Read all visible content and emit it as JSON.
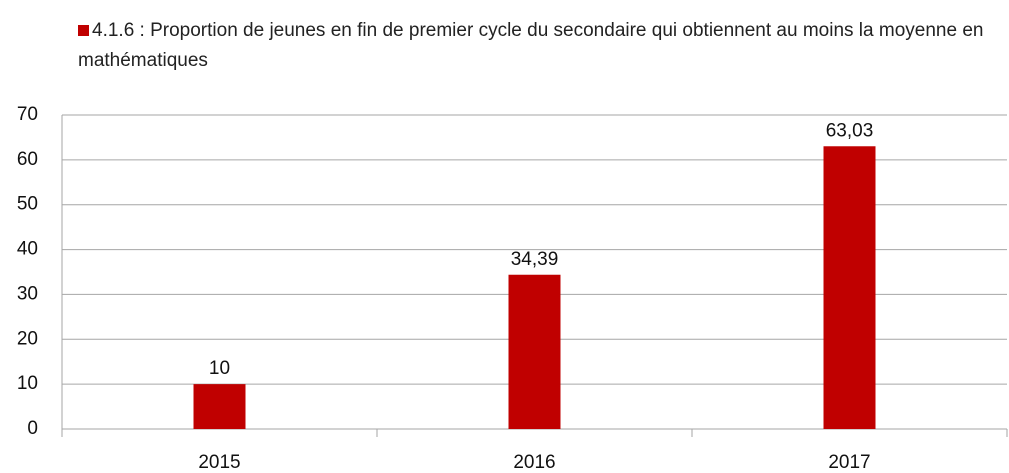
{
  "chart_data": {
    "type": "bar",
    "categories": [
      "2015",
      "2016",
      "2017"
    ],
    "series": [
      {
        "name": "4.1.6 : Proportion de jeunes en fin de premier cycle du secondaire qui obtiennent au moins la moyenne en mathématiques",
        "color": "#c00000",
        "values": [
          10,
          34.39,
          63.03
        ],
        "value_labels": [
          "10",
          "34,39",
          "63,03"
        ]
      }
    ],
    "ylim": [
      0,
      70
    ],
    "yticks": [
      0,
      10,
      20,
      30,
      40,
      50,
      60,
      70
    ],
    "grid": true,
    "legend": "top"
  }
}
